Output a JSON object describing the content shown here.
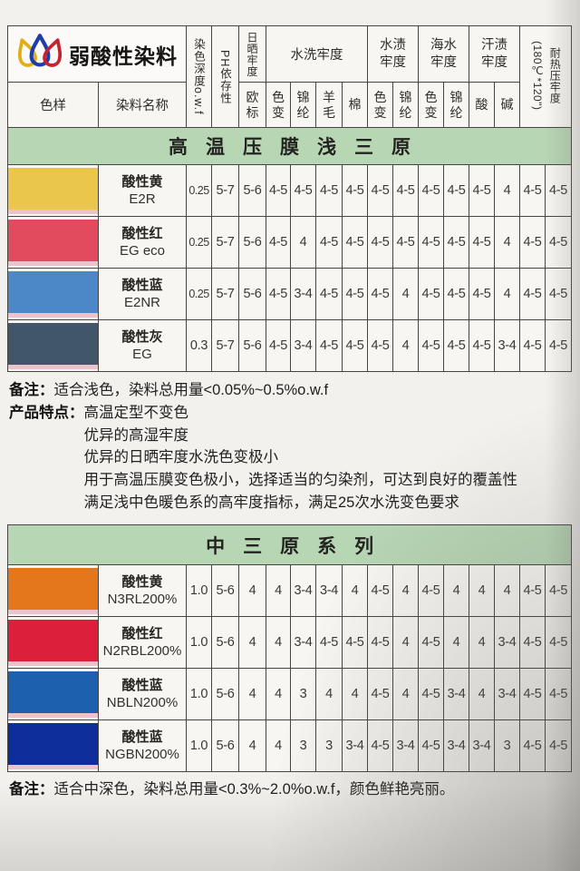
{
  "brand": {
    "name": "弱酸性染料"
  },
  "columns": {
    "sample": "色样",
    "name": "染料名称",
    "depth": "染色深度o.w.f",
    "ph": "PH依存性",
    "light": {
      "label": "日晒牢度",
      "sub": "欧标"
    },
    "wash": {
      "label": "水洗牢度",
      "subs": [
        "色变",
        "锦纶",
        "羊毛",
        "棉"
      ]
    },
    "water": {
      "label": "水渍牢度",
      "subs": [
        "色变",
        "锦纶"
      ]
    },
    "sea": {
      "label": "海水牢度",
      "subs": [
        "色变",
        "锦纶"
      ]
    },
    "sweat": {
      "label": "汗渍牢度",
      "subs": [
        "酸",
        "碱"
      ]
    },
    "heat": {
      "label": "耐热压牢度",
      "spec": "(180℃*120\")"
    }
  },
  "table1": {
    "banner": "高温压膜浅三原",
    "rows": [
      {
        "color": "#eac64b",
        "name": "酸性黄",
        "code": "E2R",
        "values": [
          "0.25",
          "5-7",
          "5-6",
          "4-5",
          "4-5",
          "4-5",
          "4-5",
          "4-5",
          "4-5",
          "4-5",
          "4-5",
          "4-5",
          "4",
          "4-5",
          "4-5"
        ]
      },
      {
        "color": "#e14b5d",
        "name": "酸性红",
        "code": "EG eco",
        "values": [
          "0.25",
          "5-7",
          "5-6",
          "4-5",
          "4",
          "4-5",
          "4-5",
          "4-5",
          "4-5",
          "4-5",
          "4-5",
          "4-5",
          "4",
          "4-5",
          "4-5"
        ]
      },
      {
        "color": "#4c87c7",
        "name": "酸性蓝",
        "code": "E2NR",
        "values": [
          "0.25",
          "5-7",
          "5-6",
          "4-5",
          "3-4",
          "4-5",
          "4-5",
          "4-5",
          "4",
          "4-5",
          "4-5",
          "4-5",
          "4",
          "4-5",
          "4-5"
        ]
      },
      {
        "color": "#42566a",
        "name": "酸性灰",
        "code": "EG",
        "values": [
          "0.3",
          "5-7",
          "5-6",
          "4-5",
          "3-4",
          "4-5",
          "4-5",
          "4-5",
          "4",
          "4-5",
          "4-5",
          "4-5",
          "3-4",
          "4-5",
          "4-5"
        ]
      }
    ]
  },
  "notes1": {
    "label1": "备注：",
    "text1": "适合浅色，染料总用量<0.05%~0.5%o.w.f",
    "label2": "产品特点：",
    "features": [
      "高温定型不变色",
      "优异的高湿牢度",
      "优异的日晒牢度水洗色变极小",
      "用于高温压膜变色极小，选择适当的匀染剂，可达到良好的覆盖性",
      "满足浅中色暖色系的高牢度指标，满足25次水洗变色要求"
    ]
  },
  "table2": {
    "banner": "中三原系列",
    "rows": [
      {
        "color": "#e4761b",
        "name": "酸性黄",
        "code": "N3RL200%",
        "values": [
          "1.0",
          "5-6",
          "4",
          "4",
          "3-4",
          "3-4",
          "4",
          "4-5",
          "4",
          "4-5",
          "4",
          "4",
          "4",
          "4-5",
          "4-5"
        ]
      },
      {
        "color": "#dc1f3b",
        "name": "酸性红",
        "code": "N2RBL200%",
        "values": [
          "1.0",
          "5-6",
          "4",
          "4",
          "3-4",
          "4-5",
          "4-5",
          "4-5",
          "4",
          "4-5",
          "4",
          "4",
          "3-4",
          "4-5",
          "4-5"
        ]
      },
      {
        "color": "#1c60ae",
        "name": "酸性蓝",
        "code": "NBLN200%",
        "values": [
          "1.0",
          "5-6",
          "4",
          "4",
          "3",
          "4",
          "4",
          "4-5",
          "4",
          "4-5",
          "3-4",
          "4",
          "3-4",
          "4-5",
          "4-5"
        ]
      },
      {
        "color": "#0d2e9b",
        "name": "酸性蓝",
        "code": "NGBN200%",
        "values": [
          "1.0",
          "5-6",
          "4",
          "4",
          "3",
          "3",
          "3-4",
          "4-5",
          "3-4",
          "4-5",
          "3-4",
          "3-4",
          "3",
          "4-5",
          "4-5"
        ]
      }
    ]
  },
  "notes2": {
    "label": "备注：",
    "text": "适合中深色，染料总用量<0.3%~2.0%o.w.f，颜色鲜艳亮丽。"
  }
}
